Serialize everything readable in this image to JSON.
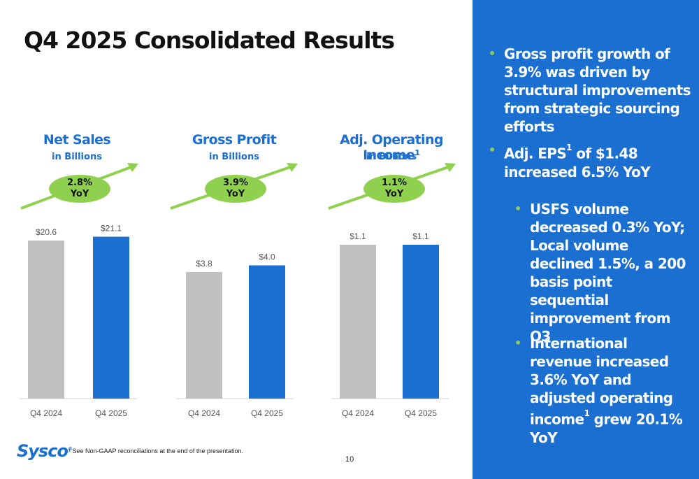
{
  "slide": {
    "title": "Q4 2025 Consolidated Results",
    "page_number": "10",
    "footnote": "¹ See Non-GAAP reconciliations at the end of the presentation.",
    "logo_text": "Sysco",
    "logo_mark": "®"
  },
  "colors": {
    "brand_blue": "#1a6fd0",
    "prior_gray": "#c0c0c0",
    "accent_green": "#8fd14f"
  },
  "charts_header": [
    {
      "title": "Net Sales",
      "subtitle": "in Billions",
      "badge_pct": "2.8%",
      "badge_label": "YoY"
    },
    {
      "title": "Gross Profit",
      "subtitle": "in Billions",
      "badge_pct": "3.9%",
      "badge_label": "YoY"
    },
    {
      "title": "Adj. Operating Income¹",
      "subtitle": "in Billions",
      "badge_pct": "1.1%",
      "badge_label": "YoY"
    }
  ],
  "chart_data": [
    {
      "type": "bar",
      "title": "Net Sales",
      "categories": [
        "Q4 2024",
        "Q4 2025"
      ],
      "values": [
        20.6,
        21.1
      ],
      "labels": [
        "$20.6",
        "$21.1"
      ]
    },
    {
      "type": "bar",
      "title": "Gross Profit",
      "categories": [
        "Q4 2024",
        "Q4 2025"
      ],
      "values": [
        3.8,
        4.0
      ],
      "labels": [
        "$3.8",
        "$4.0"
      ]
    },
    {
      "type": "bar",
      "title": "Adj. Operating Income",
      "categories": [
        "Q4 2024",
        "Q4 2025"
      ],
      "values": [
        1.1,
        1.1
      ],
      "labels": [
        "$1.1",
        "$1.1"
      ]
    }
  ],
  "bullets": {
    "b1": "Gross profit growth of 3.9% was driven by structural improvements from strategic sourcing efforts",
    "b2_pre": "Adj. EPS",
    "b2_sup": "1",
    "b2_post": " of $1.48 increased 6.5% YoY",
    "b3": "USFS volume decreased 0.3% YoY; Local volume declined 1.5%, a 200 basis point sequential improvement from Q3",
    "b4_pre": "International revenue increased 3.6% YoY and adjusted operating income",
    "b4_sup": "1",
    "b4_post": " grew 20.1% YoY",
    "bullet_glyph": "•"
  }
}
